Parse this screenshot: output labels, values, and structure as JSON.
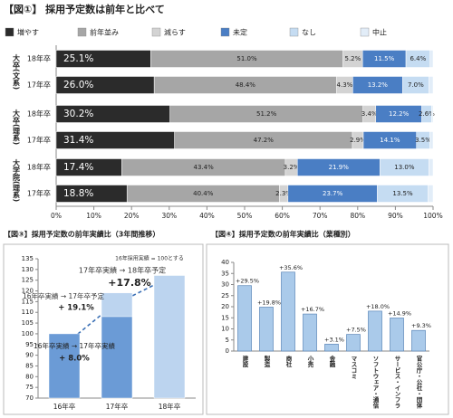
{
  "chart_data": [
    {
      "type": "bar",
      "orientation": "horizontal",
      "stacked": true,
      "title": "【図①】 採用予定数は前年と比べて",
      "groups": [
        "大卒(文系)",
        "大卒(理系)",
        "大学院(理系)"
      ],
      "categories": [
        "18年卒",
        "17年卒",
        "18年卒",
        "17年卒",
        "18年卒",
        "17年卒"
      ],
      "series": [
        {
          "name": "増やす",
          "color": "#2b2b2b",
          "values": [
            25.1,
            26.0,
            30.2,
            31.4,
            17.4,
            18.8
          ],
          "value_labels": [
            "25.1%",
            "26.0%",
            "30.2%",
            "31.4%",
            "17.4%",
            "18.8%"
          ]
        },
        {
          "name": "前年並み",
          "color": "#a6a6a6",
          "values": [
            51.0,
            48.4,
            51.2,
            47.2,
            43.4,
            40.4
          ],
          "value_labels": [
            "51.0%",
            "48.4%",
            "51.2%",
            "47.2%",
            "43.4%",
            "40.4%"
          ]
        },
        {
          "name": "減らす",
          "color": "#d3d3d3",
          "values": [
            5.2,
            4.3,
            3.4,
            2.9,
            3.2,
            2.3
          ],
          "value_labels": [
            "5.2%",
            "4.3%",
            "3.4%",
            "2.9%",
            "3.2%",
            "2.3%"
          ]
        },
        {
          "name": "未定",
          "color": "#4a7ec4",
          "values": [
            11.5,
            13.2,
            12.2,
            14.1,
            21.9,
            23.7
          ],
          "value_labels": [
            "11.5%",
            "13.2%",
            "12.2%",
            "14.1%",
            "21.9%",
            "23.7%"
          ]
        },
        {
          "name": "なし",
          "color": "#c5dcf2",
          "values": [
            6.4,
            7.0,
            2.6,
            3.5,
            13.0,
            13.5
          ],
          "value_labels": [
            "6.4%",
            "7.0%",
            "2.6%",
            "3.5%",
            "13.0%",
            "13.5%"
          ]
        },
        {
          "name": "中止",
          "color": "#e2edf8",
          "values": [
            0.8,
            1.1,
            0.4,
            0.9,
            1.1,
            1.3
          ],
          "value_labels": [
            null,
            null,
            null,
            null,
            null,
            null
          ]
        }
      ],
      "xlim": [
        0,
        100
      ],
      "xticks": [
        {
          "value": 0,
          "label": "0%"
        },
        {
          "value": 10,
          "label": "10%"
        },
        {
          "value": 20,
          "label": "20%"
        },
        {
          "value": 30,
          "label": "30%"
        },
        {
          "value": 40,
          "label": "40%"
        },
        {
          "value": 50,
          "label": "50%"
        },
        {
          "value": 60,
          "label": "60%"
        },
        {
          "value": 70,
          "label": "70%"
        },
        {
          "value": 80,
          "label": "80%"
        },
        {
          "value": 90,
          "label": "90%"
        },
        {
          "value": 100,
          "label": "100%"
        }
      ]
    },
    {
      "type": "bar",
      "title": "【図③】採用予定数の前年実績比（3年間推移）",
      "categories": [
        "16年卒",
        "17年卒",
        "18年卒"
      ],
      "series": [
        {
          "color": "#bcd4ef",
          "values": [
            null,
            119.1,
            127.2
          ]
        },
        {
          "color": "#6b9bd6",
          "values": [
            100,
            108.0,
            null
          ]
        }
      ],
      "ylim": [
        70,
        135
      ],
      "yticks": [
        70,
        75,
        80,
        85,
        90,
        95,
        100,
        105,
        110,
        115,
        120,
        125,
        130,
        135
      ],
      "annotations": [
        "16年採用実績 = 100とする",
        "17年卒実績 → 18年卒予定",
        "+17.8%",
        "16年卒実績 → 17年卒予定",
        "+ 19.1%",
        "16年卒実績 → 17年卒実績",
        "+ 8.0%"
      ]
    },
    {
      "type": "bar",
      "title": "【図④】採用予定数の前年実績比（業種別）",
      "categories": [
        "建設",
        "製造",
        "商社",
        "小売",
        "金融",
        "マスコミ",
        "ソフトウェア・通信",
        "サービス・インフラ",
        "官公庁・公社・団体"
      ],
      "values": [
        29.5,
        19.8,
        35.6,
        16.7,
        3.1,
        7.5,
        18.0,
        14.9,
        9.3
      ],
      "value_labels": [
        "+29.5%",
        "+19.8%",
        "+35.6%",
        "+16.7%",
        "+3.1%",
        "+7.5%",
        "+18.0%",
        "+14.9%",
        "+9.3%"
      ],
      "color": "#aacaea",
      "ylim": [
        0,
        40
      ],
      "yticks": [
        0,
        5,
        10,
        15,
        20,
        25,
        30,
        35,
        40
      ]
    }
  ]
}
